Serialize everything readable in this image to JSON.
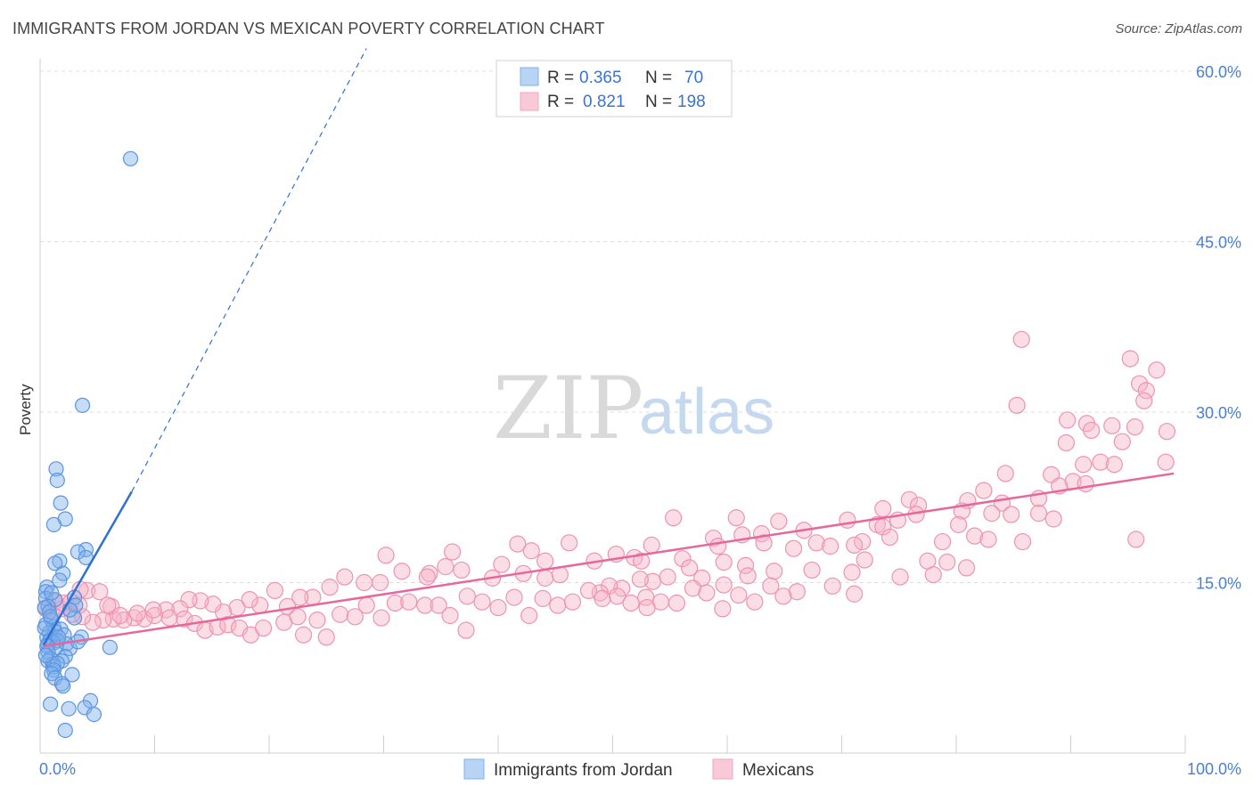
{
  "title": "IMMIGRANTS FROM JORDAN VS MEXICAN POVERTY CORRELATION CHART",
  "source": "Source: ZipAtlas.com",
  "watermark": {
    "zip": "ZIP",
    "atlas": "atlas"
  },
  "colors": {
    "blue": "#7fb0ec",
    "blue_stroke": "#5a95e0",
    "blue_line": "#2f6fd6",
    "pink": "#f6b3c8",
    "pink_stroke": "#ee93b1",
    "pink_line": "#e8679a",
    "tick_text": "#4a7fd4"
  },
  "legend_top": {
    "rows": [
      {
        "r_label": "R = ",
        "r_value": "0.365",
        "n_label": "N = ",
        "n_value": "70"
      },
      {
        "r_label": "R = ",
        "r_value": "0.821",
        "n_label": "N = ",
        "n_value": "198"
      }
    ]
  },
  "chart_data": {
    "type": "scatter",
    "title": "IMMIGRANTS FROM JORDAN VS MEXICAN POVERTY CORRELATION CHART",
    "xlabel": "",
    "ylabel": "Poverty",
    "xlim": [
      0,
      100
    ],
    "ylim": [
      0,
      60
    ],
    "x_tick_labels": [
      "0.0%",
      "100.0%"
    ],
    "y_ticks": [
      15,
      30,
      45,
      60
    ],
    "y_tick_labels": [
      "15.0%",
      "30.0%",
      "45.0%",
      "60.0%"
    ],
    "grid": true,
    "legend_position": "top-center",
    "series": [
      {
        "name": "Immigrants from Jordan",
        "r": 0.365,
        "n": 70,
        "trend": {
          "x0": 0.3,
          "y0": 9.5,
          "x1": 8.0,
          "y1": 23.0,
          "dashed_to_x": 28.5,
          "dashed_to_y": 62.0
        },
        "points": [
          [
            7.9,
            52.3
          ],
          [
            3.7,
            30.6
          ],
          [
            1.4,
            25.0
          ],
          [
            1.5,
            24.0
          ],
          [
            1.8,
            22.0
          ],
          [
            2.2,
            20.6
          ],
          [
            1.2,
            20.1
          ],
          [
            4.0,
            17.9
          ],
          [
            3.3,
            17.7
          ],
          [
            4.0,
            17.2
          ],
          [
            1.7,
            16.9
          ],
          [
            1.3,
            16.7
          ],
          [
            2.0,
            15.8
          ],
          [
            1.7,
            15.2
          ],
          [
            0.6,
            14.6
          ],
          [
            0.5,
            14.2
          ],
          [
            0.5,
            13.6
          ],
          [
            3.0,
            13.7
          ],
          [
            1.3,
            13.5
          ],
          [
            3.1,
            13.0
          ],
          [
            0.7,
            12.9
          ],
          [
            0.4,
            12.8
          ],
          [
            0.8,
            12.4
          ],
          [
            3.0,
            11.9
          ],
          [
            1.0,
            11.7
          ],
          [
            0.5,
            11.3
          ],
          [
            1.2,
            11.1
          ],
          [
            1.8,
            10.9
          ],
          [
            0.8,
            10.6
          ],
          [
            1.3,
            10.7
          ],
          [
            2.1,
            10.4
          ],
          [
            3.6,
            10.2
          ],
          [
            0.6,
            10.2
          ],
          [
            0.9,
            10.0
          ],
          [
            1.5,
            9.9
          ],
          [
            0.8,
            9.8
          ],
          [
            1.2,
            9.7
          ],
          [
            0.7,
            9.5
          ],
          [
            0.6,
            9.4
          ],
          [
            6.1,
            9.3
          ],
          [
            1.4,
            9.3
          ],
          [
            2.3,
            9.6
          ],
          [
            2.6,
            9.2
          ],
          [
            0.7,
            8.9
          ],
          [
            2.2,
            8.5
          ],
          [
            0.9,
            8.3
          ],
          [
            0.7,
            8.1
          ],
          [
            1.9,
            8.1
          ],
          [
            1.1,
            7.8
          ],
          [
            1.2,
            7.6
          ],
          [
            1.5,
            7.9
          ],
          [
            1.2,
            7.3
          ],
          [
            1.0,
            7.0
          ],
          [
            2.8,
            6.9
          ],
          [
            1.3,
            6.6
          ],
          [
            1.9,
            6.1
          ],
          [
            2.0,
            5.9
          ],
          [
            4.4,
            4.6
          ],
          [
            0.9,
            4.3
          ],
          [
            3.9,
            4.0
          ],
          [
            2.5,
            3.9
          ],
          [
            4.7,
            3.4
          ],
          [
            2.2,
            2.0
          ],
          [
            0.9,
            12.0
          ],
          [
            2.6,
            12.6
          ],
          [
            0.4,
            11.0
          ],
          [
            1.6,
            10.2
          ],
          [
            3.3,
            9.8
          ],
          [
            0.5,
            8.6
          ],
          [
            1.0,
            14.1
          ]
        ]
      },
      {
        "name": "Mexicans",
        "r": 0.821,
        "n": 198,
        "trend": {
          "x0": 0.3,
          "y0": 9.4,
          "x1": 99.0,
          "y1": 24.6
        },
        "points": [
          [
            95.2,
            34.7
          ],
          [
            97.5,
            33.7
          ],
          [
            85.7,
            36.4
          ],
          [
            96.0,
            32.5
          ],
          [
            96.6,
            31.9
          ],
          [
            96.4,
            31.0
          ],
          [
            85.3,
            30.6
          ],
          [
            89.7,
            29.3
          ],
          [
            91.4,
            29.0
          ],
          [
            93.6,
            28.8
          ],
          [
            91.8,
            28.4
          ],
          [
            98.4,
            28.3
          ],
          [
            95.6,
            28.7
          ],
          [
            89.6,
            27.3
          ],
          [
            94.5,
            27.4
          ],
          [
            98.3,
            25.6
          ],
          [
            91.1,
            25.4
          ],
          [
            92.6,
            25.6
          ],
          [
            93.8,
            25.4
          ],
          [
            84.3,
            24.6
          ],
          [
            88.3,
            24.5
          ],
          [
            90.2,
            23.9
          ],
          [
            91.3,
            23.7
          ],
          [
            89.0,
            23.5
          ],
          [
            82.4,
            23.1
          ],
          [
            84.0,
            22.0
          ],
          [
            87.2,
            22.4
          ],
          [
            75.9,
            22.3
          ],
          [
            81.0,
            22.2
          ],
          [
            76.7,
            21.8
          ],
          [
            80.5,
            21.3
          ],
          [
            83.1,
            21.1
          ],
          [
            76.5,
            21.0
          ],
          [
            73.6,
            21.5
          ],
          [
            87.2,
            21.1
          ],
          [
            84.8,
            21.0
          ],
          [
            74.9,
            20.5
          ],
          [
            73.1,
            20.1
          ],
          [
            80.2,
            20.1
          ],
          [
            88.5,
            20.6
          ],
          [
            70.5,
            20.5
          ],
          [
            64.5,
            20.4
          ],
          [
            60.8,
            20.7
          ],
          [
            55.3,
            20.7
          ],
          [
            73.6,
            19.9
          ],
          [
            66.7,
            19.6
          ],
          [
            61.3,
            19.2
          ],
          [
            81.6,
            19.1
          ],
          [
            82.8,
            18.8
          ],
          [
            78.8,
            18.6
          ],
          [
            63.0,
            19.3
          ],
          [
            58.8,
            18.9
          ],
          [
            71.8,
            18.6
          ],
          [
            67.8,
            18.5
          ],
          [
            69.0,
            18.2
          ],
          [
            74.2,
            19.0
          ],
          [
            85.8,
            18.6
          ],
          [
            95.7,
            18.8
          ],
          [
            71.1,
            18.3
          ],
          [
            65.8,
            18.0
          ],
          [
            63.2,
            18.5
          ],
          [
            59.2,
            18.2
          ],
          [
            53.4,
            18.3
          ],
          [
            56.1,
            17.1
          ],
          [
            50.3,
            17.5
          ],
          [
            46.2,
            18.5
          ],
          [
            41.7,
            18.4
          ],
          [
            42.9,
            17.8
          ],
          [
            36.0,
            17.7
          ],
          [
            30.2,
            17.4
          ],
          [
            34.0,
            15.8
          ],
          [
            40.3,
            16.6
          ],
          [
            44.1,
            16.9
          ],
          [
            48.4,
            16.9
          ],
          [
            51.9,
            17.2
          ],
          [
            52.5,
            16.9
          ],
          [
            56.7,
            16.3
          ],
          [
            59.7,
            16.8
          ],
          [
            61.6,
            16.5
          ],
          [
            64.1,
            16.0
          ],
          [
            67.4,
            16.1
          ],
          [
            70.9,
            15.9
          ],
          [
            72.0,
            17.0
          ],
          [
            77.5,
            16.9
          ],
          [
            79.2,
            16.8
          ],
          [
            80.9,
            16.3
          ],
          [
            78.0,
            15.7
          ],
          [
            75.1,
            15.5
          ],
          [
            69.2,
            14.7
          ],
          [
            66.1,
            14.2
          ],
          [
            71.1,
            14.0
          ],
          [
            64.9,
            13.8
          ],
          [
            61.8,
            15.6
          ],
          [
            59.7,
            14.8
          ],
          [
            57.8,
            15.4
          ],
          [
            54.8,
            15.5
          ],
          [
            53.5,
            15.1
          ],
          [
            52.4,
            15.3
          ],
          [
            50.8,
            14.5
          ],
          [
            49.7,
            14.7
          ],
          [
            48.9,
            14.1
          ],
          [
            45.4,
            15.7
          ],
          [
            44.1,
            15.4
          ],
          [
            42.2,
            15.8
          ],
          [
            39.5,
            15.4
          ],
          [
            36.8,
            16.1
          ],
          [
            35.4,
            16.4
          ],
          [
            33.8,
            15.5
          ],
          [
            31.6,
            16.0
          ],
          [
            29.7,
            15.0
          ],
          [
            28.3,
            15.0
          ],
          [
            26.6,
            15.5
          ],
          [
            25.3,
            14.6
          ],
          [
            23.8,
            13.7
          ],
          [
            22.7,
            13.7
          ],
          [
            21.6,
            12.9
          ],
          [
            20.5,
            14.3
          ],
          [
            19.2,
            13.0
          ],
          [
            18.3,
            13.5
          ],
          [
            17.2,
            12.8
          ],
          [
            16.0,
            12.4
          ],
          [
            15.1,
            13.1
          ],
          [
            14.0,
            13.4
          ],
          [
            13.0,
            13.5
          ],
          [
            12.2,
            12.7
          ],
          [
            11.0,
            12.6
          ],
          [
            10.0,
            12.1
          ],
          [
            9.1,
            11.8
          ],
          [
            8.2,
            11.9
          ],
          [
            7.3,
            11.7
          ],
          [
            6.4,
            11.8
          ],
          [
            5.5,
            11.7
          ],
          [
            4.6,
            11.5
          ],
          [
            3.7,
            12.0
          ],
          [
            2.8,
            12.2
          ],
          [
            1.9,
            12.7
          ],
          [
            1.0,
            12.5
          ],
          [
            0.5,
            12.7
          ],
          [
            1.3,
            13.3
          ],
          [
            2.0,
            13.2
          ],
          [
            2.7,
            13.3
          ],
          [
            3.4,
            13.0
          ],
          [
            4.1,
            14.3
          ],
          [
            5.2,
            14.2
          ],
          [
            6.2,
            12.9
          ],
          [
            7.0,
            12.1
          ],
          [
            8.5,
            12.3
          ],
          [
            9.9,
            12.6
          ],
          [
            11.3,
            11.9
          ],
          [
            12.6,
            11.8
          ],
          [
            13.5,
            11.4
          ],
          [
            14.4,
            10.8
          ],
          [
            15.5,
            11.1
          ],
          [
            16.4,
            11.3
          ],
          [
            17.4,
            11.0
          ],
          [
            18.4,
            10.4
          ],
          [
            19.5,
            11.0
          ],
          [
            21.3,
            11.5
          ],
          [
            22.5,
            12.0
          ],
          [
            23.0,
            10.4
          ],
          [
            24.2,
            11.7
          ],
          [
            25.0,
            10.2
          ],
          [
            26.2,
            12.2
          ],
          [
            27.5,
            12.0
          ],
          [
            28.5,
            13.0
          ],
          [
            29.8,
            11.9
          ],
          [
            31.0,
            13.2
          ],
          [
            32.2,
            13.3
          ],
          [
            33.6,
            13.0
          ],
          [
            34.8,
            13.0
          ],
          [
            35.8,
            12.1
          ],
          [
            37.3,
            13.8
          ],
          [
            38.6,
            13.3
          ],
          [
            40.0,
            12.8
          ],
          [
            41.4,
            13.7
          ],
          [
            42.7,
            12.1
          ],
          [
            43.9,
            13.6
          ],
          [
            45.2,
            13.0
          ],
          [
            46.5,
            13.3
          ],
          [
            47.9,
            14.3
          ],
          [
            49.1,
            13.6
          ],
          [
            50.4,
            13.8
          ],
          [
            51.6,
            13.2
          ],
          [
            52.9,
            13.7
          ],
          [
            54.2,
            13.3
          ],
          [
            55.6,
            13.2
          ],
          [
            57.0,
            14.5
          ],
          [
            58.2,
            14.1
          ],
          [
            59.6,
            12.7
          ],
          [
            61.0,
            13.9
          ],
          [
            62.4,
            13.3
          ],
          [
            63.8,
            14.7
          ],
          [
            37.2,
            10.8
          ],
          [
            53.0,
            12.8
          ],
          [
            3.5,
            14.4
          ],
          [
            5.9,
            13.0
          ]
        ]
      }
    ]
  },
  "legend_bottom": [
    {
      "label": "Immigrants from Jordan"
    },
    {
      "label": "Mexicans"
    }
  ]
}
